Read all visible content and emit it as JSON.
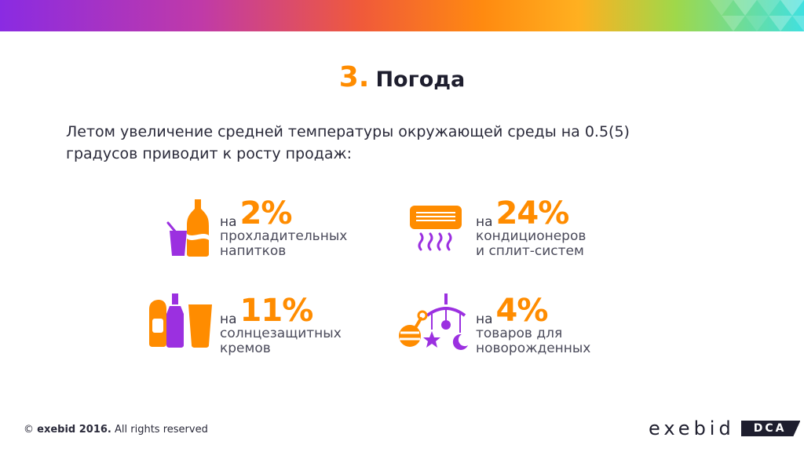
{
  "title": {
    "number": "3",
    "dot": ".",
    "word": "Погода"
  },
  "lead": {
    "line1": "Летом увеличение средней температуры окружающей среды на 0.5(5)",
    "line2": "градусов приводит к росту продаж:"
  },
  "stats": [
    {
      "prefix": "на",
      "value": "2%",
      "line1": "прохладительных",
      "line2": "напитков",
      "icon": "drinks-icon"
    },
    {
      "prefix": "на",
      "value": "24%",
      "line1": "кондиционеров",
      "line2": "и сплит-систем",
      "icon": "air-conditioner-icon"
    },
    {
      "prefix": "на",
      "value": "11%",
      "line1": "солнцезащитных",
      "line2": "кремов",
      "icon": "sunscreen-bottles-icon"
    },
    {
      "prefix": "на",
      "value": "4%",
      "line1": "товаров для",
      "line2": "новорожденных",
      "icon": "baby-mobile-icon"
    }
  ],
  "footer": {
    "symbol": "©",
    "brand": "exebid 2016.",
    "rights": "All rights reserved"
  },
  "logo": {
    "name": "exebid",
    "badge": "DCA"
  },
  "colors": {
    "accent": "#ff8c00",
    "purple": "#9b30e0",
    "text": "#2a2a3a"
  }
}
